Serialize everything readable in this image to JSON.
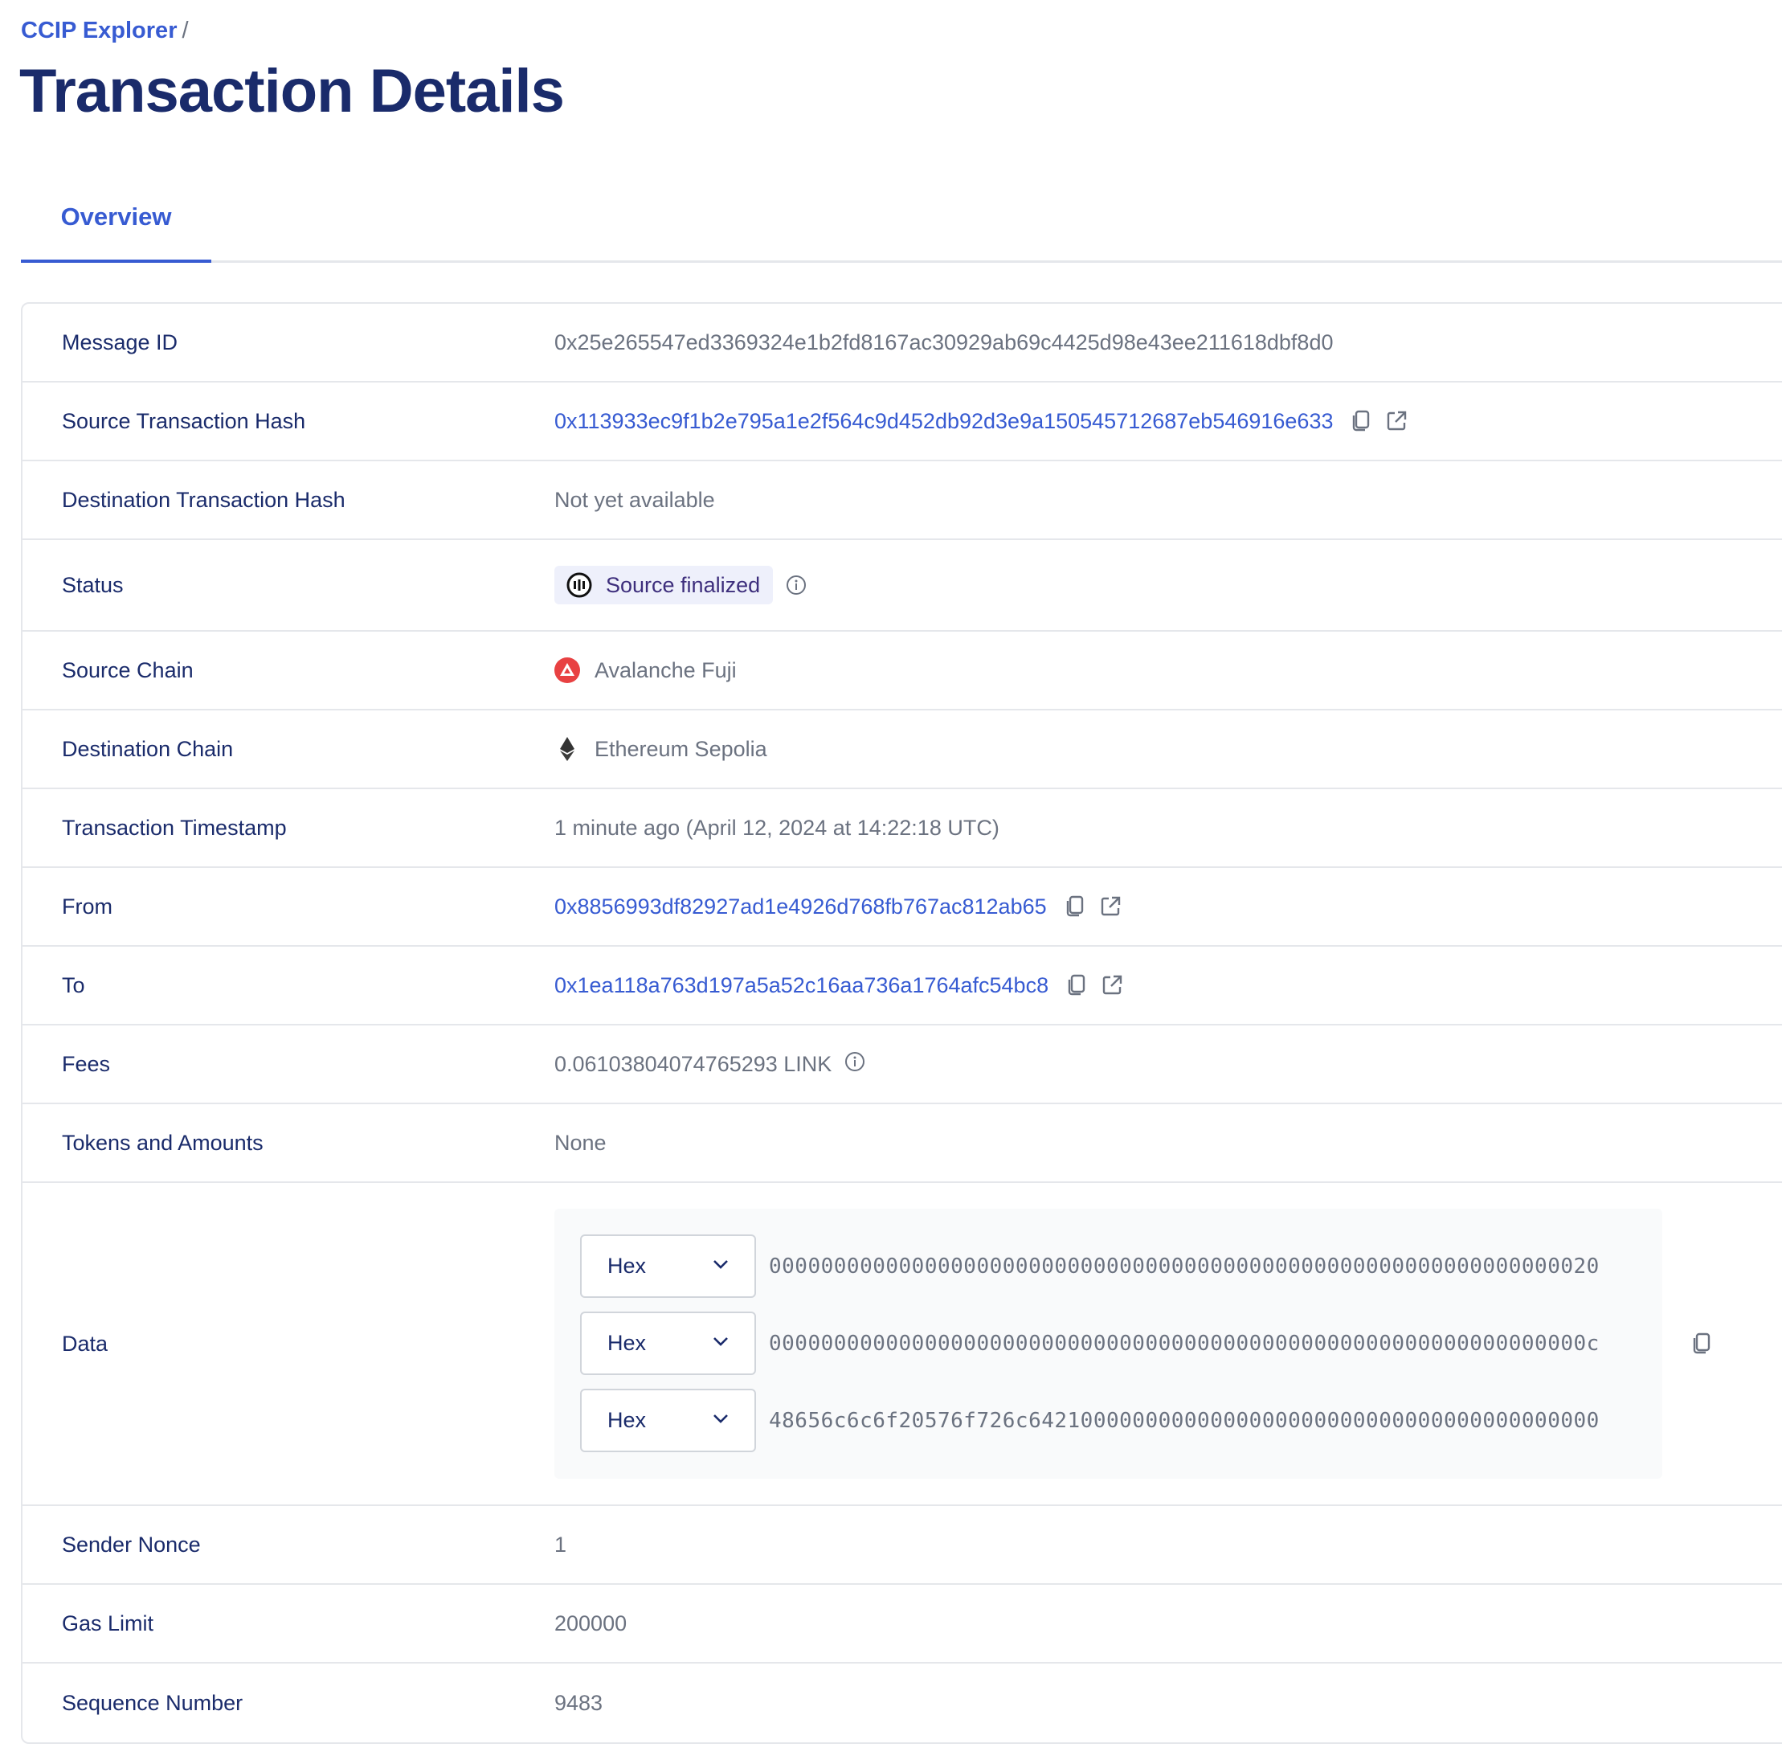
{
  "breadcrumb": {
    "root": "CCIP Explorer",
    "separator": "/"
  },
  "page_title": "Transaction Details",
  "tabs": [
    {
      "label": "Overview",
      "active": true
    }
  ],
  "colors": {
    "accent": "#375bd2",
    "title": "#1a2b6b",
    "muted": "#6b7280",
    "avalanche": "#e84142"
  },
  "rows": {
    "message_id": {
      "label": "Message ID",
      "value": "0x25e265547ed3369324e1b2fd8167ac30929ab69c4425d98e43ee211618dbf8d0"
    },
    "source_tx": {
      "label": "Source Transaction Hash",
      "value": "0x113933ec9f1b2e795a1e2f564c9d452db92d3e9a150545712687eb546916e633"
    },
    "dest_tx": {
      "label": "Destination Transaction Hash",
      "value": "Not yet available"
    },
    "status": {
      "label": "Status",
      "value": "Source finalized",
      "icon": "progress-icon"
    },
    "source_chain": {
      "label": "Source Chain",
      "value": "Avalanche Fuji",
      "icon": "avalanche-icon"
    },
    "dest_chain": {
      "label": "Destination Chain",
      "value": "Ethereum Sepolia",
      "icon": "ethereum-icon"
    },
    "timestamp": {
      "label": "Transaction Timestamp",
      "value": "1 minute ago (April 12, 2024 at 14:22:18 UTC)"
    },
    "from": {
      "label": "From",
      "value": "0x8856993df82927ad1e4926d768fb767ac812ab65"
    },
    "to": {
      "label": "To",
      "value": "0x1ea118a763d197a5a52c16aa736a1764afc54bc8"
    },
    "fees": {
      "label": "Fees",
      "value": "0.06103804074765293 LINK"
    },
    "tokens": {
      "label": "Tokens and Amounts",
      "value": "None"
    },
    "data": {
      "label": "Data",
      "items": [
        {
          "format": "Hex",
          "value": "0000000000000000000000000000000000000000000000000000000000000020"
        },
        {
          "format": "Hex",
          "value": "000000000000000000000000000000000000000000000000000000000000000c"
        },
        {
          "format": "Hex",
          "value": "48656c6c6f20576f726c64210000000000000000000000000000000000000000"
        }
      ]
    },
    "nonce": {
      "label": "Sender Nonce",
      "value": "1"
    },
    "gas": {
      "label": "Gas Limit",
      "value": "200000"
    },
    "sequence": {
      "label": "Sequence Number",
      "value": "9483"
    }
  }
}
